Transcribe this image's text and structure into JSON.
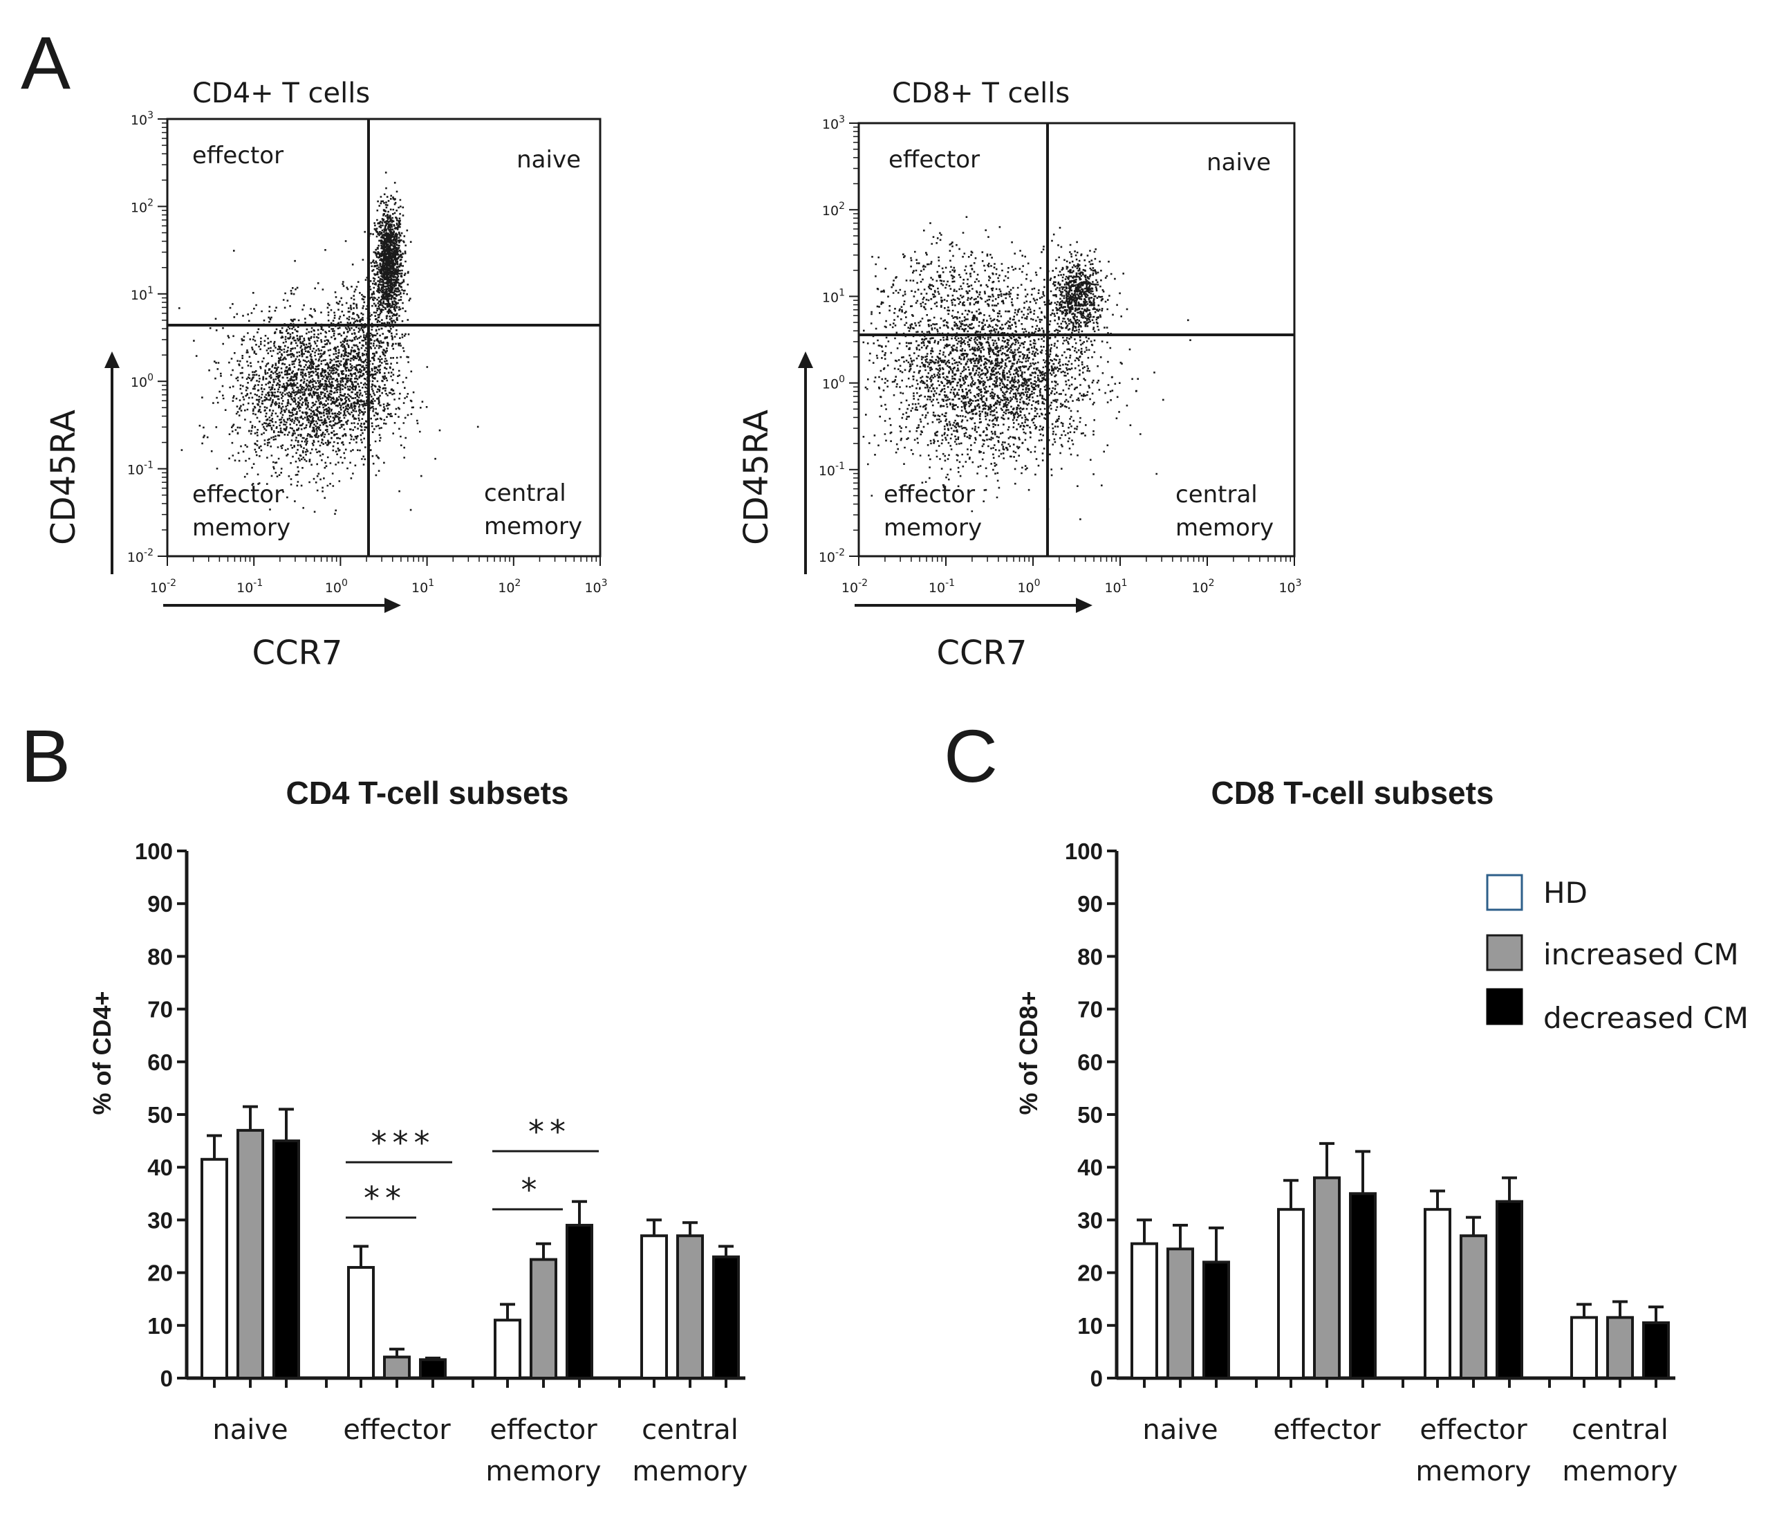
{
  "panels": {
    "A": "A",
    "B": "B",
    "C": "C"
  },
  "scatter_titles": {
    "left": "CD4+ T cells",
    "right": "CD8+ T cells"
  },
  "scatter_axes": {
    "x_label": "CCR7",
    "y_label": "CD45RA",
    "tick_base": "10",
    "tick_exponents": [
      "-2",
      "-1",
      "0",
      "1",
      "2",
      "3"
    ]
  },
  "quadrants": {
    "top_left": "effector",
    "top_right": "naive",
    "bottom_left_line1": "effector",
    "bottom_left_line2": "memory",
    "bottom_right_line1": "central",
    "bottom_right_line2": "memory"
  },
  "legend": [
    "HD",
    "increased CM",
    "decreased CM"
  ],
  "colors": {
    "hd": "#ffffff",
    "increased": "#999999",
    "decreased": "#000000",
    "legend_hd_border": "#2e5f8a",
    "ink": "#1a1a1a"
  },
  "bar_categories": [
    {
      "line1": "naive",
      "line2": ""
    },
    {
      "line1": "effector",
      "line2": ""
    },
    {
      "line1": "effector",
      "line2": "memory"
    },
    {
      "line1": "central",
      "line2": "memory"
    }
  ],
  "significance": [
    {
      "label": "***",
      "group": 1,
      "from_series": 0,
      "to_series": 2
    },
    {
      "label": "**",
      "group": 1,
      "from_series": 0,
      "to_series": 1
    },
    {
      "label": "**",
      "group": 2,
      "from_series": 0,
      "to_series": 2
    },
    {
      "label": "*",
      "group": 2,
      "from_series": 0,
      "to_series": 1
    }
  ],
  "chart_data": [
    {
      "type": "scatter",
      "title": "CD4+ T cells",
      "xlabel": "CCR7",
      "ylabel": "CD45RA",
      "xscale": "log",
      "yscale": "log",
      "xlim": [
        0.01,
        1000
      ],
      "ylim": [
        0.01,
        1000
      ],
      "gates": {
        "x": 1.7,
        "y": 4.0
      },
      "clusters": [
        {
          "name": "naive",
          "center_log": [
            0.55,
            1.35
          ],
          "spread_log": [
            0.08,
            0.32
          ],
          "count": 1300
        },
        {
          "name": "effector memory",
          "center_log": [
            -0.35,
            -0.1
          ],
          "spread_log": [
            0.45,
            0.45
          ],
          "count": 2300
        },
        {
          "name": "transition",
          "center_log": [
            0.3,
            0.4
          ],
          "spread_log": [
            0.2,
            0.4
          ],
          "count": 500
        }
      ]
    },
    {
      "type": "scatter",
      "title": "CD8+ T cells",
      "xlabel": "CCR7",
      "ylabel": "CD45RA",
      "xscale": "log",
      "yscale": "log",
      "xlim": [
        0.01,
        1000
      ],
      "ylim": [
        0.01,
        1000
      ],
      "gates": {
        "x": 1.4,
        "y": 3.6
      },
      "clusters": [
        {
          "name": "naive",
          "center_log": [
            0.5,
            1.0
          ],
          "spread_log": [
            0.15,
            0.22
          ],
          "count": 700
        },
        {
          "name": "effector memory",
          "center_log": [
            -0.5,
            0.1
          ],
          "spread_log": [
            0.6,
            0.5
          ],
          "count": 2700
        },
        {
          "name": "effector",
          "center_log": [
            -0.9,
            1.05
          ],
          "spread_log": [
            0.45,
            0.3
          ],
          "count": 350
        }
      ]
    },
    {
      "type": "bar",
      "title": "CD4 T-cell subsets",
      "ylabel": "% of CD4+",
      "ylim": [
        0,
        100
      ],
      "yticks": [
        0,
        10,
        20,
        30,
        40,
        50,
        60,
        70,
        80,
        90,
        100
      ],
      "categories": [
        "naive",
        "effector",
        "effector memory",
        "central memory"
      ],
      "series": [
        {
          "name": "HD",
          "values": [
            41.5,
            21,
            11,
            27
          ],
          "errors": [
            4.5,
            4,
            3,
            3
          ]
        },
        {
          "name": "increased CM",
          "values": [
            47,
            4,
            22.5,
            27
          ],
          "errors": [
            4.5,
            1.5,
            3,
            2.5
          ]
        },
        {
          "name": "decreased CM",
          "values": [
            45,
            3.5,
            29,
            23
          ],
          "errors": [
            6,
            0.3,
            4.5,
            2
          ]
        }
      ]
    },
    {
      "type": "bar",
      "title": "CD8 T-cell subsets",
      "ylabel": "% of CD8+",
      "ylim": [
        0,
        100
      ],
      "yticks": [
        0,
        10,
        20,
        30,
        40,
        50,
        60,
        70,
        80,
        90,
        100
      ],
      "categories": [
        "naive",
        "effector",
        "effector memory",
        "central memory"
      ],
      "series": [
        {
          "name": "HD",
          "values": [
            25.5,
            32,
            32,
            11.5
          ],
          "errors": [
            4.5,
            5.5,
            3.5,
            2.5
          ]
        },
        {
          "name": "increased CM",
          "values": [
            24.5,
            38,
            27,
            11.5
          ],
          "errors": [
            4.5,
            6.5,
            3.5,
            3
          ]
        },
        {
          "name": "decreased CM",
          "values": [
            22,
            35,
            33.5,
            10.5
          ],
          "errors": [
            6.5,
            8,
            4.5,
            3
          ]
        }
      ]
    }
  ]
}
